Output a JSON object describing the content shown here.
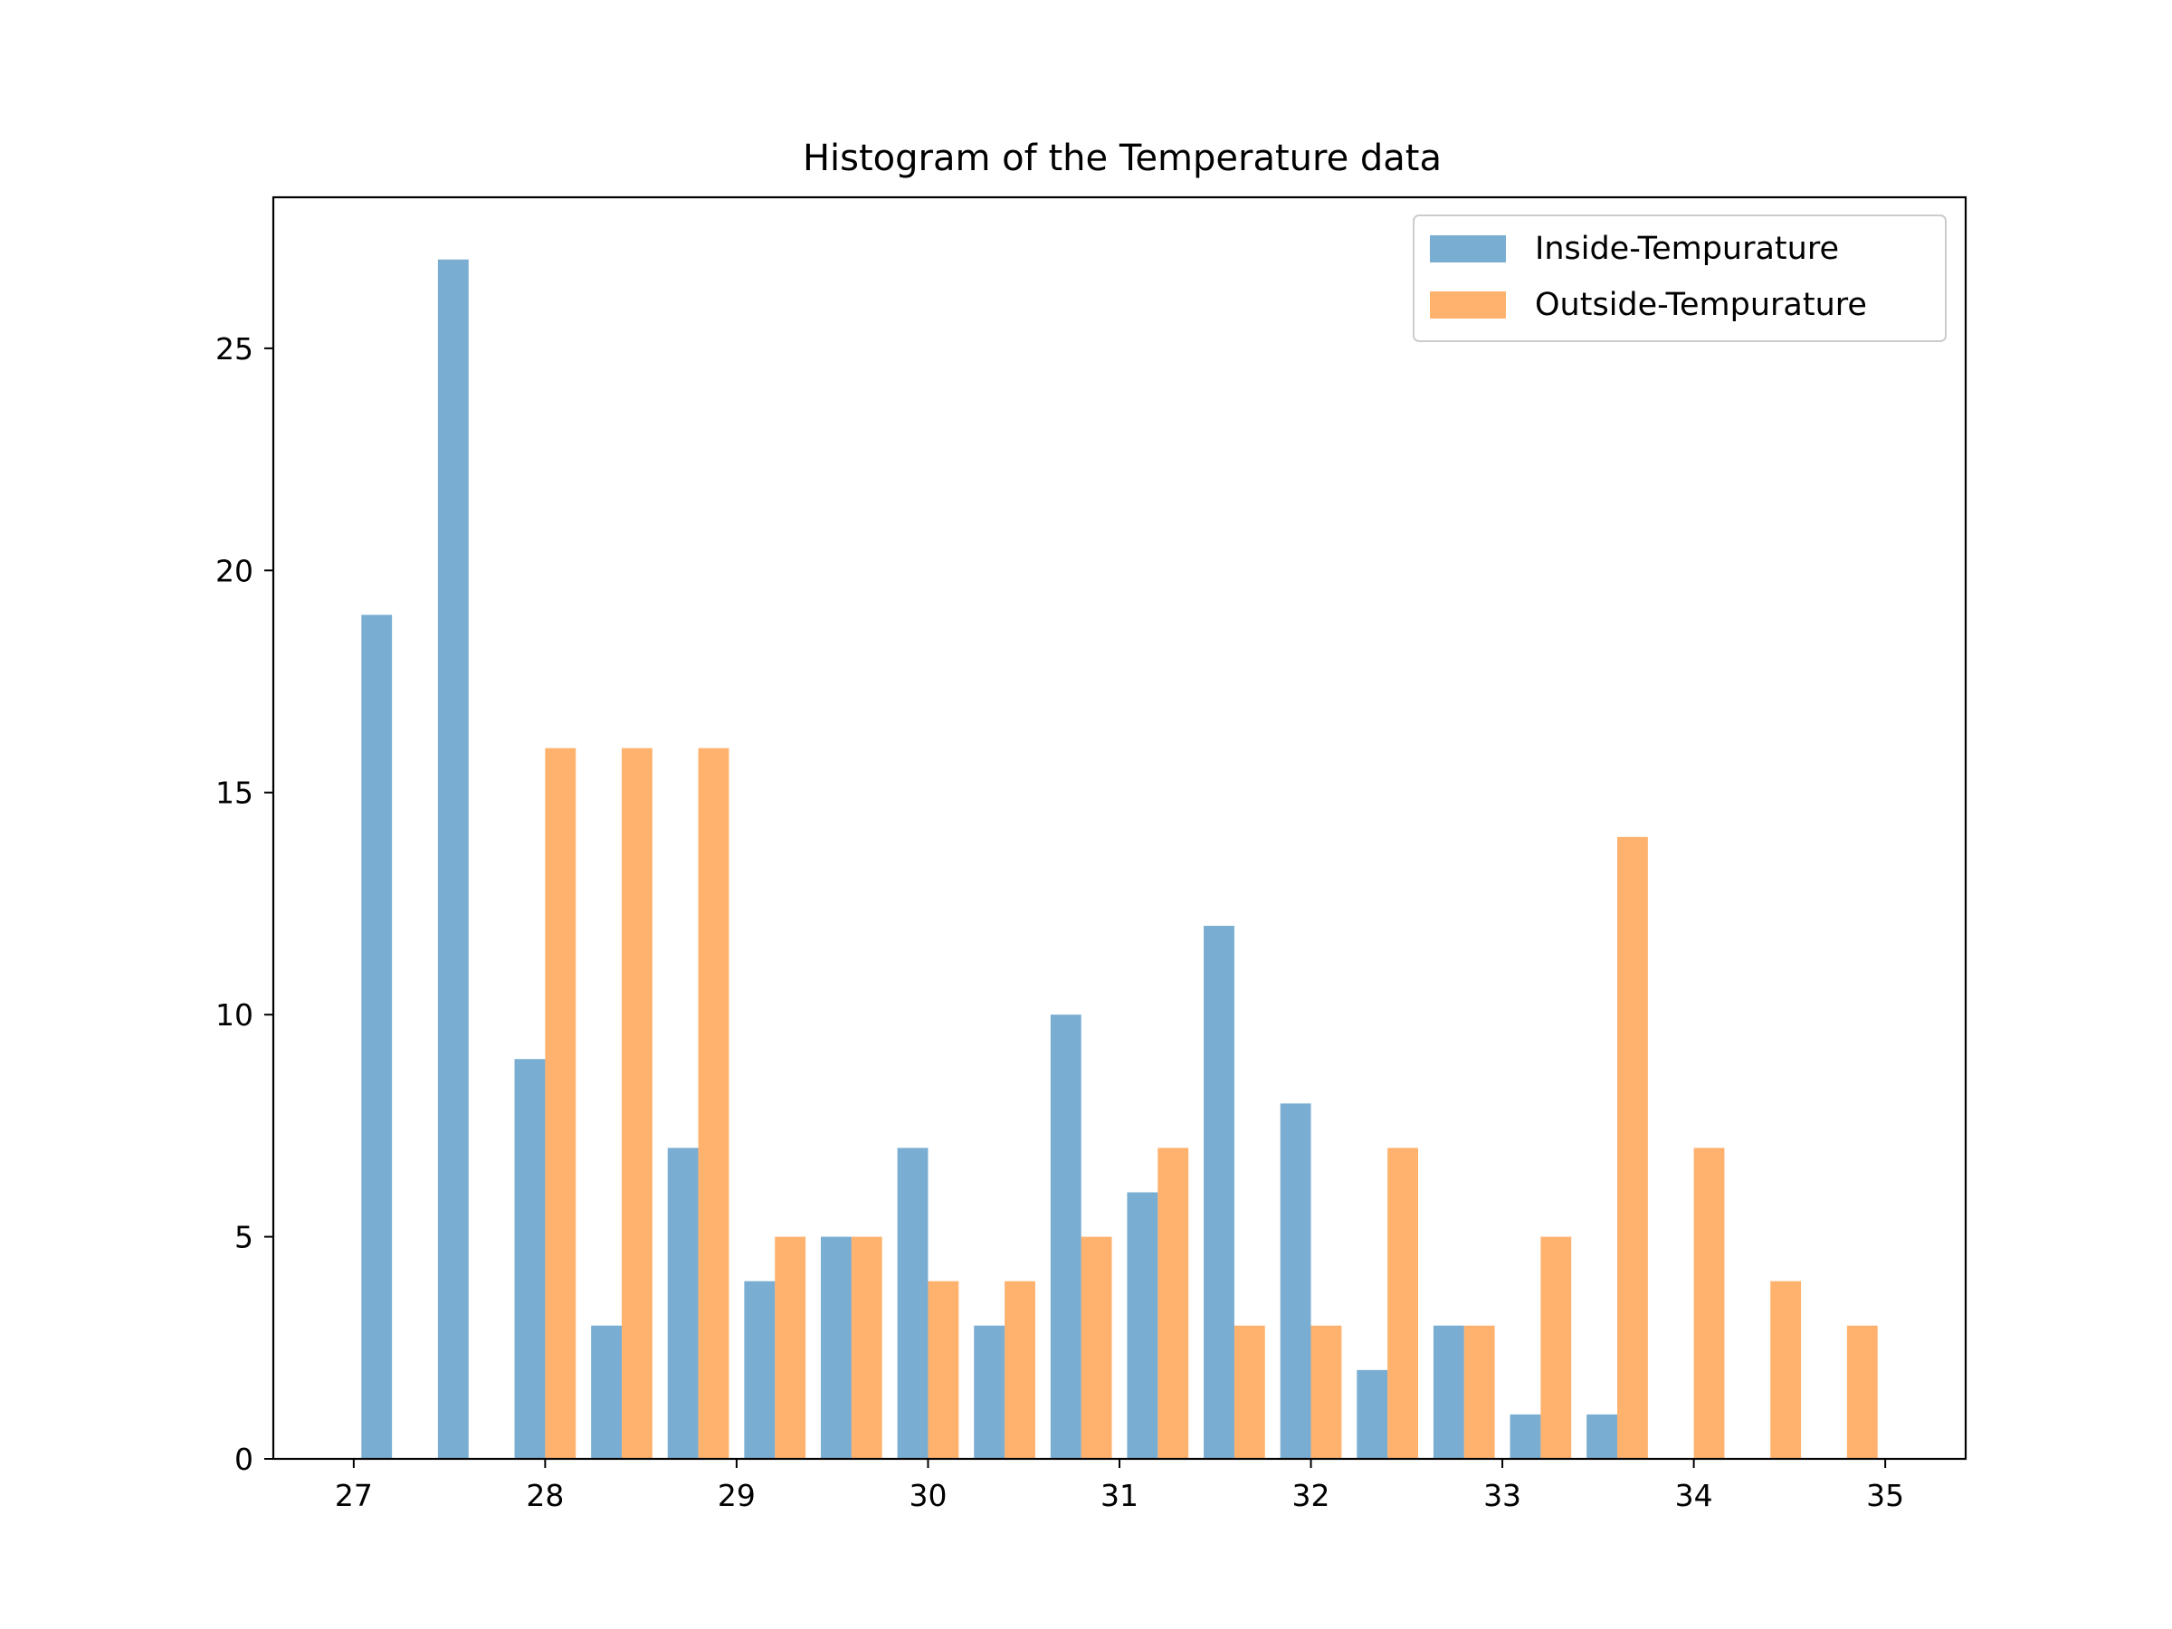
{
  "chart_data": {
    "type": "bar",
    "title": "Histogram of the Temperature data",
    "xlabel": "",
    "ylabel": "",
    "xlim": [
      26.58,
      35.42
    ],
    "ylim": [
      0,
      28.4
    ],
    "x_ticks": [
      27,
      28,
      29,
      30,
      31,
      32,
      33,
      34,
      35
    ],
    "y_ticks": [
      0,
      5,
      10,
      15,
      20,
      25
    ],
    "bin_edges": [
      27.0,
      27.4,
      27.8,
      28.2,
      28.6,
      29.0,
      29.4,
      29.8,
      30.2,
      30.6,
      31.0,
      31.4,
      31.8,
      32.2,
      32.6,
      33.0,
      33.4,
      33.8,
      34.2,
      34.6,
      35.0
    ],
    "series": [
      {
        "name": "Inside-Tempurature",
        "color": "#1f77b4",
        "alpha": 0.6,
        "values": [
          19,
          27,
          9,
          3,
          7,
          4,
          5,
          7,
          3,
          10,
          6,
          12,
          8,
          2,
          3,
          1,
          1,
          0,
          0,
          0
        ]
      },
      {
        "name": "Outside-Tempurature",
        "color": "#ff7f0e",
        "alpha": 0.6,
        "values": [
          0,
          0,
          16,
          16,
          16,
          5,
          5,
          4,
          4,
          5,
          7,
          3,
          3,
          7,
          3,
          5,
          14,
          7,
          4,
          3
        ]
      }
    ],
    "grid": false,
    "legend_position": "upper right"
  }
}
